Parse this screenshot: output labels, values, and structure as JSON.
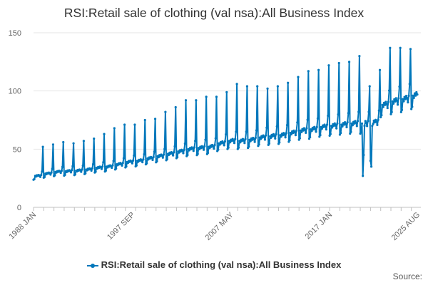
{
  "chart_data": {
    "type": "line",
    "title": "RSI:Retail sale of clothing (val nsa):All Business Index",
    "xlabel": "",
    "ylabel": "",
    "x_range": [
      "1988 JAN",
      "2025 AUG"
    ],
    "ylim": [
      0,
      150
    ],
    "y_ticks": [
      0,
      50,
      100,
      150
    ],
    "x_tick_labels": [
      "1988 JAN",
      "1997 SEP",
      "2007 MAY",
      "2017 JAN",
      "2025 AUG"
    ],
    "grid": true,
    "legend_position": "bottom-center",
    "color": "#0077bb",
    "series": [
      {
        "name": "RSI:Retail sale of clothing (val nsa):All Business Index",
        "annual": [
          {
            "year": 1988,
            "base": 27,
            "dec": 52
          },
          {
            "year": 1989,
            "base": 29,
            "dec": 54
          },
          {
            "year": 1990,
            "base": 30.5,
            "dec": 56
          },
          {
            "year": 1991,
            "base": 31,
            "dec": 55
          },
          {
            "year": 1992,
            "base": 31.5,
            "dec": 57
          },
          {
            "year": 1993,
            "base": 32.5,
            "dec": 59
          },
          {
            "year": 1994,
            "base": 34,
            "dec": 63
          },
          {
            "year": 1995,
            "base": 35,
            "dec": 68
          },
          {
            "year": 1996,
            "base": 37,
            "dec": 71
          },
          {
            "year": 1997,
            "base": 39,
            "dec": 71
          },
          {
            "year": 1998,
            "base": 40,
            "dec": 75
          },
          {
            "year": 1999,
            "base": 42,
            "dec": 76
          },
          {
            "year": 2000,
            "base": 44,
            "dec": 82
          },
          {
            "year": 2001,
            "base": 46,
            "dec": 86
          },
          {
            "year": 2002,
            "base": 48,
            "dec": 92
          },
          {
            "year": 2003,
            "base": 50,
            "dec": 92
          },
          {
            "year": 2004,
            "base": 51,
            "dec": 95
          },
          {
            "year": 2005,
            "base": 52,
            "dec": 95
          },
          {
            "year": 2006,
            "base": 55,
            "dec": 99
          },
          {
            "year": 2007,
            "base": 57,
            "dec": 106
          },
          {
            "year": 2008,
            "base": 57,
            "dec": 104
          },
          {
            "year": 2009,
            "base": 58,
            "dec": 104
          },
          {
            "year": 2010,
            "base": 60,
            "dec": 102
          },
          {
            "year": 2011,
            "base": 61,
            "dec": 104
          },
          {
            "year": 2012,
            "base": 62,
            "dec": 107
          },
          {
            "year": 2013,
            "base": 64,
            "dec": 112
          },
          {
            "year": 2014,
            "base": 66,
            "dec": 117
          },
          {
            "year": 2015,
            "base": 67,
            "dec": 118
          },
          {
            "year": 2016,
            "base": 69,
            "dec": 122
          },
          {
            "year": 2017,
            "base": 70,
            "dec": 124
          },
          {
            "year": 2018,
            "base": 71,
            "dec": 125
          },
          {
            "year": 2019,
            "base": 72,
            "dec": 130
          },
          {
            "year": 2020,
            "base": 72,
            "dec": 104,
            "override": {
              "3": 27,
              "4": 45,
              "5": 70
            }
          },
          {
            "year": 2021,
            "base": 73,
            "dec": 118,
            "override": {
              "0": 40,
              "1": 35,
              "2": 70
            }
          },
          {
            "year": 2022,
            "base": 88,
            "dec": 137
          },
          {
            "year": 2023,
            "base": 91,
            "dec": 137
          },
          {
            "year": 2024,
            "base": 93,
            "dec": 136
          },
          {
            "year": 2025,
            "base": 96,
            "dec": null
          }
        ]
      }
    ]
  },
  "legend": {
    "label": "RSI:Retail sale of clothing (val nsa):All Business Index"
  },
  "credits": {
    "label": "Source:"
  }
}
